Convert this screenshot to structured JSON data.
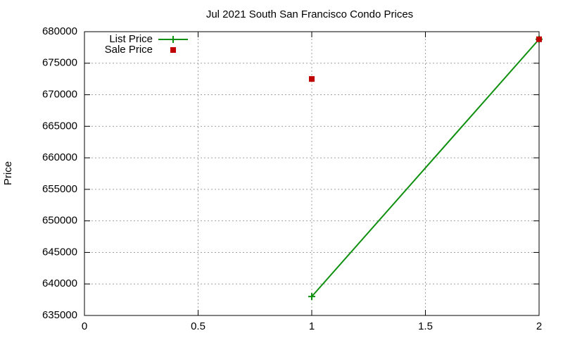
{
  "chart_data": {
    "type": "line",
    "title": "Jul 2021 South San Francisco Condo Prices",
    "y_label": "Price",
    "series": [
      {
        "name": "List Price",
        "color": "#109010",
        "style": "linespoints",
        "x": [
          1,
          2
        ],
        "values": [
          638000,
          678800
        ]
      },
      {
        "name": "Sale Price",
        "color": "#c00000",
        "style": "points",
        "x": [
          1,
          2
        ],
        "values": [
          672500,
          678800
        ]
      }
    ],
    "xlim": [
      0,
      2
    ],
    "xticks": [
      0,
      0.5,
      1,
      1.5,
      2
    ],
    "ylim": [
      635000,
      680000
    ],
    "yticks": [
      635000,
      640000,
      645000,
      650000,
      655000,
      660000,
      665000,
      670000,
      675000,
      680000
    ],
    "grid": true,
    "legend": "top-left"
  }
}
